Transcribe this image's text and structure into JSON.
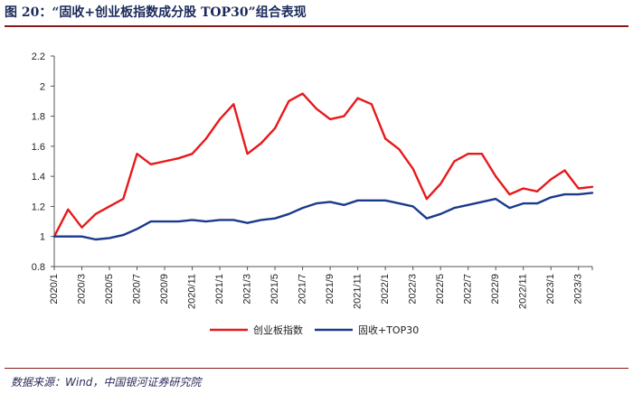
{
  "header": {
    "title": "图 20：“固收+创业板指数成分股 TOP30”组合表现"
  },
  "footer": {
    "source": "数据来源：Wind，中国银河证券研究院"
  },
  "colors": {
    "series_red": "#e8191b",
    "series_blue": "#1a3a8c",
    "rule": "#8a1a1a"
  },
  "chart_data": {
    "type": "line",
    "title": "“固收+创业板指数成分股 TOP30”组合表现",
    "xlabel": "",
    "ylabel": "",
    "ylim": [
      0.8,
      2.2
    ],
    "yticks": [
      "0.8",
      "1",
      "1.2",
      "1.4",
      "1.6",
      "1.8",
      "2",
      "2.2"
    ],
    "xlim": [
      "2020/1",
      "2023/4"
    ],
    "xticks": [
      "2020/1",
      "2020/3",
      "2020/5",
      "2020/7",
      "2020/9",
      "2020/11",
      "2021/1",
      "2021/3",
      "2021/5",
      "2021/7",
      "2021/9",
      "2021/11",
      "2022/1",
      "2022/3",
      "2022/5",
      "2022/7",
      "2022/9",
      "2022/11",
      "2023/1",
      "2023/3"
    ],
    "legend_position": "bottom-center",
    "grid": false,
    "x": [
      "2020/1",
      "2020/2",
      "2020/3",
      "2020/4",
      "2020/5",
      "2020/6",
      "2020/7",
      "2020/8",
      "2020/9",
      "2020/10",
      "2020/11",
      "2020/12",
      "2021/1",
      "2021/2",
      "2021/3",
      "2021/4",
      "2021/5",
      "2021/6",
      "2021/7",
      "2021/8",
      "2021/9",
      "2021/10",
      "2021/11",
      "2021/12",
      "2022/1",
      "2022/2",
      "2022/3",
      "2022/4",
      "2022/5",
      "2022/6",
      "2022/7",
      "2022/8",
      "2022/9",
      "2022/10",
      "2022/11",
      "2022/12",
      "2023/1",
      "2023/2",
      "2023/3",
      "2023/4"
    ],
    "series": [
      {
        "name": "创业板指数",
        "values": [
          1.0,
          1.18,
          1.06,
          1.15,
          1.2,
          1.25,
          1.55,
          1.48,
          1.5,
          1.52,
          1.55,
          1.65,
          1.78,
          1.88,
          1.55,
          1.62,
          1.72,
          1.9,
          1.95,
          1.85,
          1.78,
          1.8,
          1.92,
          1.88,
          1.65,
          1.58,
          1.45,
          1.25,
          1.35,
          1.5,
          1.55,
          1.55,
          1.4,
          1.28,
          1.32,
          1.3,
          1.38,
          1.44,
          1.32,
          1.33
        ]
      },
      {
        "name": "固收+TOP30",
        "values": [
          1.0,
          1.0,
          1.0,
          0.98,
          0.99,
          1.01,
          1.05,
          1.1,
          1.1,
          1.1,
          1.11,
          1.1,
          1.11,
          1.11,
          1.09,
          1.11,
          1.12,
          1.15,
          1.19,
          1.22,
          1.23,
          1.21,
          1.24,
          1.24,
          1.24,
          1.22,
          1.2,
          1.12,
          1.15,
          1.19,
          1.21,
          1.23,
          1.25,
          1.19,
          1.22,
          1.22,
          1.26,
          1.28,
          1.28,
          1.29
        ]
      }
    ]
  }
}
